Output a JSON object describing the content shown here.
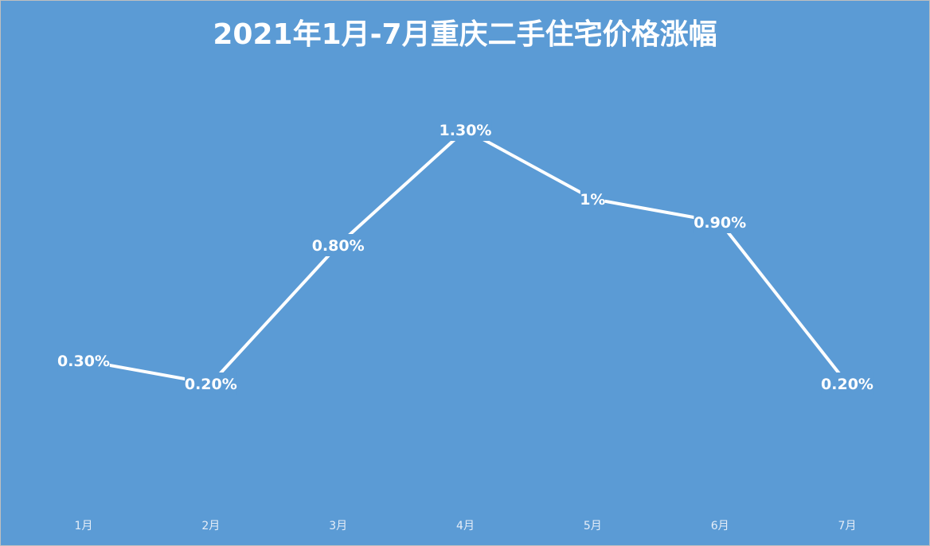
{
  "chart_data": {
    "type": "line",
    "title": "2021年1月-7月重庆二手住宅价格涨幅",
    "categories": [
      "1月",
      "2月",
      "3月",
      "4月",
      "5月",
      "6月",
      "7月"
    ],
    "series": [
      {
        "values": [
          0.3,
          0.2,
          0.8,
          1.3,
          1.0,
          0.9,
          0.2
        ],
        "labels": [
          "0.30%",
          "0.20%",
          "0.80%",
          "1.30%",
          "1%",
          "0.90%",
          "0.20%"
        ]
      }
    ],
    "xlabel": "",
    "ylabel": "",
    "ylim": [
      -0.2,
      1.4
    ],
    "grid": false,
    "drop_lines": true,
    "legend": "none",
    "colors": {
      "background": "#5b9bd5",
      "line": "#ffffff",
      "border": "#bfbfbf"
    }
  }
}
